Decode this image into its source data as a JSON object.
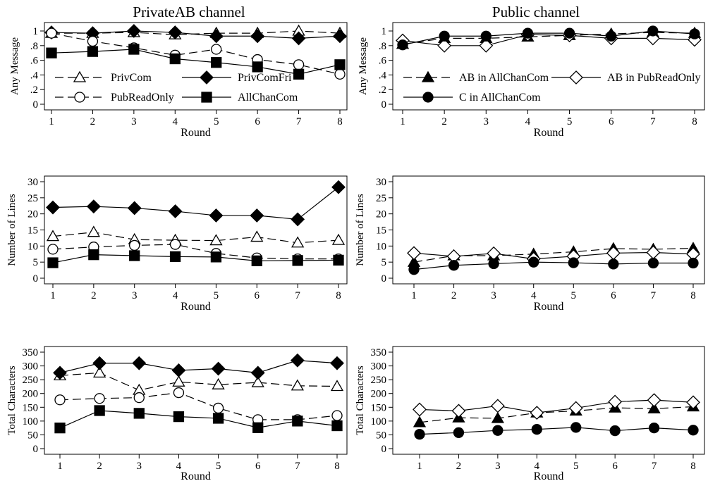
{
  "columns": {
    "left_title": "PrivateAB channel",
    "right_title": "Public channel"
  },
  "chart_data": [
    {
      "type": "line",
      "xlabel": "Round",
      "ylabel": "Any Message",
      "x": [
        1,
        2,
        3,
        4,
        5,
        6,
        7,
        8
      ],
      "yticks": [
        "0",
        ".2",
        ".4",
        ".6",
        ".8",
        "1"
      ],
      "ylim": [
        0,
        1
      ],
      "grid": false,
      "legend": "inside, lower half, two columns",
      "series": [
        {
          "name": "PrivCom",
          "marker": "triangle-open",
          "dashed": true,
          "values": [
            0.97,
            0.97,
            0.98,
            0.95,
            0.97,
            0.97,
            1.0,
            0.97
          ]
        },
        {
          "name": "PrivComFri",
          "marker": "diamond-filled",
          "dashed": false,
          "values": [
            0.98,
            0.97,
            1.0,
            0.98,
            0.93,
            0.93,
            0.9,
            0.93
          ]
        },
        {
          "name": "PubReadOnly",
          "marker": "circle-open",
          "dashed": true,
          "values": [
            0.97,
            0.86,
            0.77,
            0.67,
            0.75,
            0.61,
            0.54,
            0.41
          ]
        },
        {
          "name": "AllChanCom",
          "marker": "square-filled",
          "dashed": false,
          "values": [
            0.7,
            0.72,
            0.75,
            0.62,
            0.57,
            0.51,
            0.41,
            0.54
          ]
        }
      ]
    },
    {
      "type": "line",
      "xlabel": "Round",
      "ylabel": "Any Message",
      "x": [
        1,
        2,
        3,
        4,
        5,
        6,
        7,
        8
      ],
      "yticks": [
        "0",
        ".2",
        ".4",
        ".6",
        ".8",
        "1"
      ],
      "ylim": [
        0,
        1
      ],
      "grid": false,
      "legend": "inside, lower half",
      "series": [
        {
          "name": "AB in AllChanCom",
          "marker": "triangle-filled",
          "dashed": true,
          "values": [
            0.82,
            0.9,
            0.9,
            0.92,
            0.94,
            0.96,
            0.98,
            0.97
          ]
        },
        {
          "name": "AB in PubReadOnly",
          "marker": "diamond-open",
          "dashed": false,
          "values": [
            0.87,
            0.8,
            0.8,
            0.95,
            0.94,
            0.9,
            0.9,
            0.88
          ]
        },
        {
          "name": "C in AllChanCom",
          "marker": "circle-filled",
          "dashed": false,
          "values": [
            0.81,
            0.93,
            0.93,
            0.97,
            0.97,
            0.93,
            1.0,
            0.96
          ]
        }
      ]
    },
    {
      "type": "line",
      "xlabel": "Round",
      "ylabel": "Number of Lines",
      "x": [
        1,
        2,
        3,
        4,
        5,
        6,
        7,
        8
      ],
      "yticks": [
        "0",
        "5",
        "10",
        "15",
        "20",
        "25",
        "30"
      ],
      "ylim": [
        0,
        30
      ],
      "grid": false,
      "series": [
        {
          "name": "PrivCom",
          "marker": "triangle-open",
          "dashed": true,
          "values": [
            13,
            14.3,
            12,
            11.8,
            11.7,
            12.8,
            11,
            11.8
          ]
        },
        {
          "name": "PrivComFri",
          "marker": "diamond-filled",
          "dashed": false,
          "values": [
            22,
            22.3,
            21.8,
            20.8,
            19.5,
            19.5,
            18.3,
            28.3
          ]
        },
        {
          "name": "PubReadOnly",
          "marker": "circle-open",
          "dashed": true,
          "values": [
            9,
            9.7,
            10.2,
            10.5,
            7.7,
            6.3,
            6,
            6
          ]
        },
        {
          "name": "AllChanCom",
          "marker": "square-filled",
          "dashed": false,
          "values": [
            4.8,
            7.3,
            7,
            6.7,
            6.6,
            5.4,
            5.5,
            5.6
          ]
        }
      ]
    },
    {
      "type": "line",
      "xlabel": "Round",
      "ylabel": "Number of Lines",
      "x": [
        1,
        2,
        3,
        4,
        5,
        6,
        7,
        8
      ],
      "yticks": [
        "0",
        "5",
        "10",
        "15",
        "20",
        "25",
        "30"
      ],
      "ylim": [
        0,
        30
      ],
      "grid": false,
      "series": [
        {
          "name": "AB in AllChanCom",
          "marker": "triangle-filled",
          "dashed": true,
          "values": [
            5,
            7,
            7,
            7.5,
            8.2,
            9.2,
            9,
            9.3
          ]
        },
        {
          "name": "AB in PubReadOnly",
          "marker": "diamond-open",
          "dashed": false,
          "values": [
            7.8,
            6.8,
            7.7,
            6,
            6.8,
            7.8,
            8,
            7.5
          ]
        },
        {
          "name": "C in AllChanCom",
          "marker": "circle-filled",
          "dashed": false,
          "values": [
            2.7,
            4,
            4.5,
            5,
            4.8,
            4.4,
            4.7,
            4.7
          ]
        }
      ]
    },
    {
      "type": "line",
      "xlabel": "Round",
      "ylabel": "Total Characters",
      "x": [
        1,
        2,
        3,
        4,
        5,
        6,
        7,
        8
      ],
      "yticks": [
        "0",
        "50",
        "100",
        "150",
        "200",
        "250",
        "300",
        "350"
      ],
      "ylim": [
        0,
        350
      ],
      "grid": false,
      "series": [
        {
          "name": "PrivCom",
          "marker": "triangle-open",
          "dashed": true,
          "values": [
            265,
            275,
            212,
            242,
            232,
            240,
            228,
            226
          ]
        },
        {
          "name": "PrivComFri",
          "marker": "diamond-filled",
          "dashed": false,
          "values": [
            275,
            310,
            310,
            284,
            290,
            275,
            320,
            310
          ]
        },
        {
          "name": "PubReadOnly",
          "marker": "circle-open",
          "dashed": true,
          "values": [
            177,
            182,
            185,
            203,
            147,
            105,
            105,
            120
          ]
        },
        {
          "name": "AllChanCom",
          "marker": "square-filled",
          "dashed": false,
          "values": [
            75,
            138,
            128,
            116,
            110,
            76,
            100,
            83
          ]
        }
      ]
    },
    {
      "type": "line",
      "xlabel": "Round",
      "ylabel": "Total Characters",
      "x": [
        1,
        2,
        3,
        4,
        5,
        6,
        7,
        8
      ],
      "yticks": [
        "0",
        "50",
        "100",
        "150",
        "200",
        "250",
        "300",
        "350"
      ],
      "ylim": [
        0,
        350
      ],
      "grid": false,
      "series": [
        {
          "name": "AB in AllChanCom",
          "marker": "triangle-filled",
          "dashed": true,
          "values": [
            95,
            112,
            110,
            130,
            137,
            148,
            145,
            152
          ]
        },
        {
          "name": "AB in PubReadOnly",
          "marker": "diamond-open",
          "dashed": false,
          "values": [
            142,
            137,
            155,
            130,
            147,
            170,
            176,
            168
          ]
        },
        {
          "name": "C in AllChanCom",
          "marker": "circle-filled",
          "dashed": false,
          "values": [
            52,
            58,
            66,
            70,
            77,
            65,
            75,
            67
          ]
        }
      ]
    }
  ]
}
